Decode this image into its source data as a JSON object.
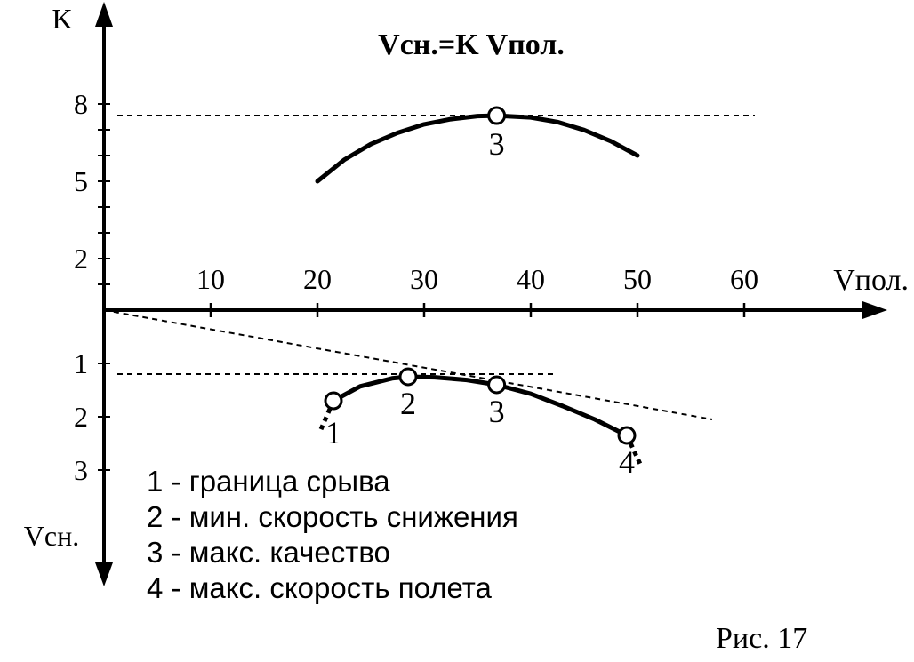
{
  "chart_data": {
    "type": "line",
    "formula": "Vсн.=K Vпол.",
    "figure_label": "Рис. 17",
    "x_axis": {
      "label": "Vпол.",
      "ticks": [
        "10",
        "20",
        "30",
        "40",
        "50",
        "60"
      ],
      "range": [
        0,
        60
      ]
    },
    "k_axis": {
      "label": "K",
      "ticks": [
        "2",
        "5",
        "8"
      ],
      "range": [
        0,
        8
      ]
    },
    "v_axis": {
      "label": "Vсн.",
      "ticks": [
        "1",
        "2",
        "3"
      ],
      "range": [
        0,
        3
      ]
    },
    "k_curve": {
      "x": [
        20,
        22.5,
        25,
        27.5,
        30,
        32.5,
        35,
        36.8,
        40,
        42.5,
        45,
        47.5,
        50
      ],
      "y": [
        5.0,
        5.83,
        6.44,
        6.88,
        7.21,
        7.41,
        7.53,
        7.55,
        7.48,
        7.3,
        6.99,
        6.56,
        6.0
      ]
    },
    "sink_curve": {
      "x": [
        21.5,
        24,
        27,
        28.5,
        31,
        34,
        36.8,
        40,
        43,
        46,
        49
      ],
      "y": [
        1.7,
        1.43,
        1.28,
        1.25,
        1.26,
        1.31,
        1.4,
        1.57,
        1.8,
        2.05,
        2.35
      ]
    },
    "points": [
      {
        "id": "1",
        "x": 21.5,
        "y": 1.7,
        "curve": "sink",
        "label": "1"
      },
      {
        "id": "2",
        "x": 28.5,
        "y": 1.25,
        "curve": "sink",
        "label": "2"
      },
      {
        "id": "3",
        "x": 36.8,
        "y": 1.4,
        "curve": "sink",
        "label": "3"
      },
      {
        "id": "4",
        "x": 49,
        "y": 2.35,
        "curve": "sink",
        "label": "4"
      },
      {
        "id": "3k",
        "x": 36.8,
        "y": 7.55,
        "curve": "k",
        "label": "3"
      }
    ],
    "reference_lines": [
      {
        "kind": "horizontal",
        "panel": "k",
        "y": 7.55
      },
      {
        "kind": "horizontal",
        "panel": "sink",
        "y": 1.2
      },
      {
        "kind": "tangent",
        "panel": "sink",
        "x1": 0,
        "y1": 0,
        "x2": 57,
        "y2": 2.05
      }
    ],
    "legend": [
      {
        "num": "1",
        "text": "граница срыва"
      },
      {
        "num": "2",
        "text": "мин. скорость снижения"
      },
      {
        "num": "3",
        "text": "макс. качество"
      },
      {
        "num": "4",
        "text": "макс. скорость полета"
      }
    ]
  }
}
